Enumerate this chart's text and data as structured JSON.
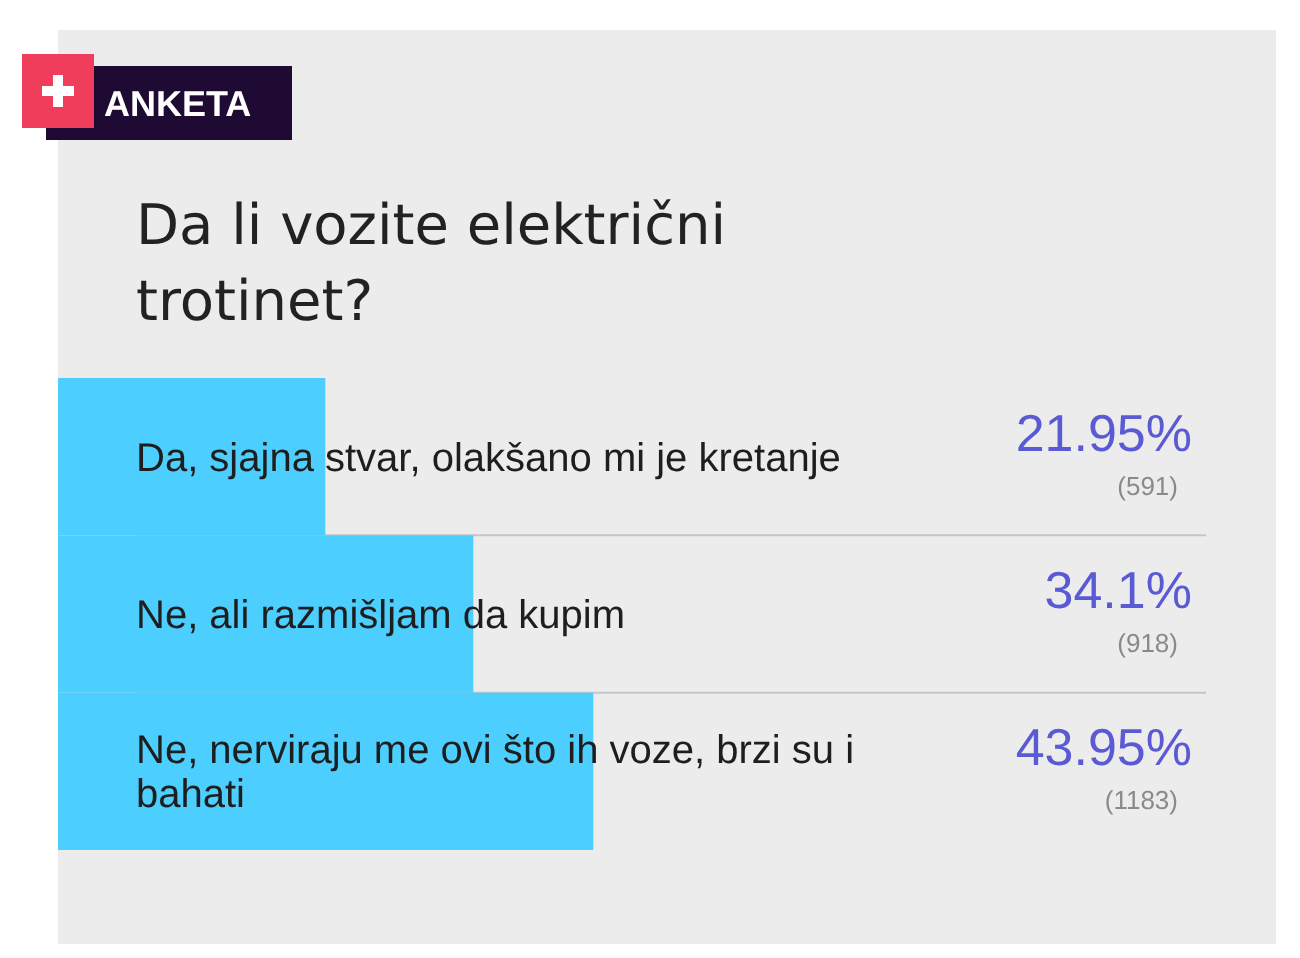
{
  "chart_data": {
    "type": "bar",
    "orientation": "horizontal",
    "title": "Da li vozite električni trotinet?",
    "categories": [
      "Da, sjajna stvar, olakšano mi je kretanje",
      "Ne, ali razmišljam da kupim",
      "Ne, nerviraju me ovi što ih voze, brzi su i bahati"
    ],
    "values": [
      21.95,
      34.1,
      43.95
    ],
    "color": "#4ccfff",
    "value_labels": [
      "21.95%",
      "34.1%",
      "43.95%"
    ],
    "xlim": [
      0,
      100
    ],
    "tick_labels": "y",
    "grid": "y",
    "annotations": [
      "ANKETA",
      "(591)",
      "(918)",
      "(1183)"
    ]
  }
}
